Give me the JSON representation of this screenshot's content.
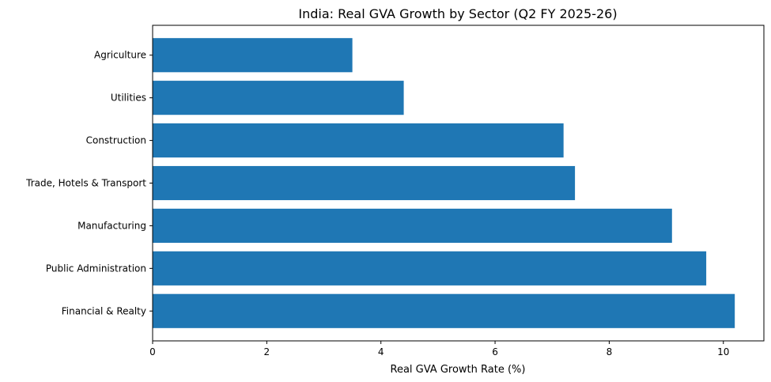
{
  "chart_data": {
    "type": "bar",
    "orientation": "horizontal",
    "title": "India: Real GVA Growth by Sector (Q2 FY 2025-26)",
    "xlabel": "Real GVA Growth Rate (%)",
    "ylabel": "",
    "categories": [
      "Financial & Realty",
      "Public Administration",
      "Manufacturing",
      "Trade, Hotels & Transport",
      "Construction",
      "Utilities",
      "Agriculture"
    ],
    "values": [
      10.2,
      9.7,
      9.1,
      7.4,
      7.2,
      4.4,
      3.5
    ],
    "xlim": [
      0,
      10.71
    ],
    "xticks": [
      0,
      2,
      4,
      6,
      8,
      10
    ],
    "grid": false,
    "bar_color": "#1f77b4"
  }
}
